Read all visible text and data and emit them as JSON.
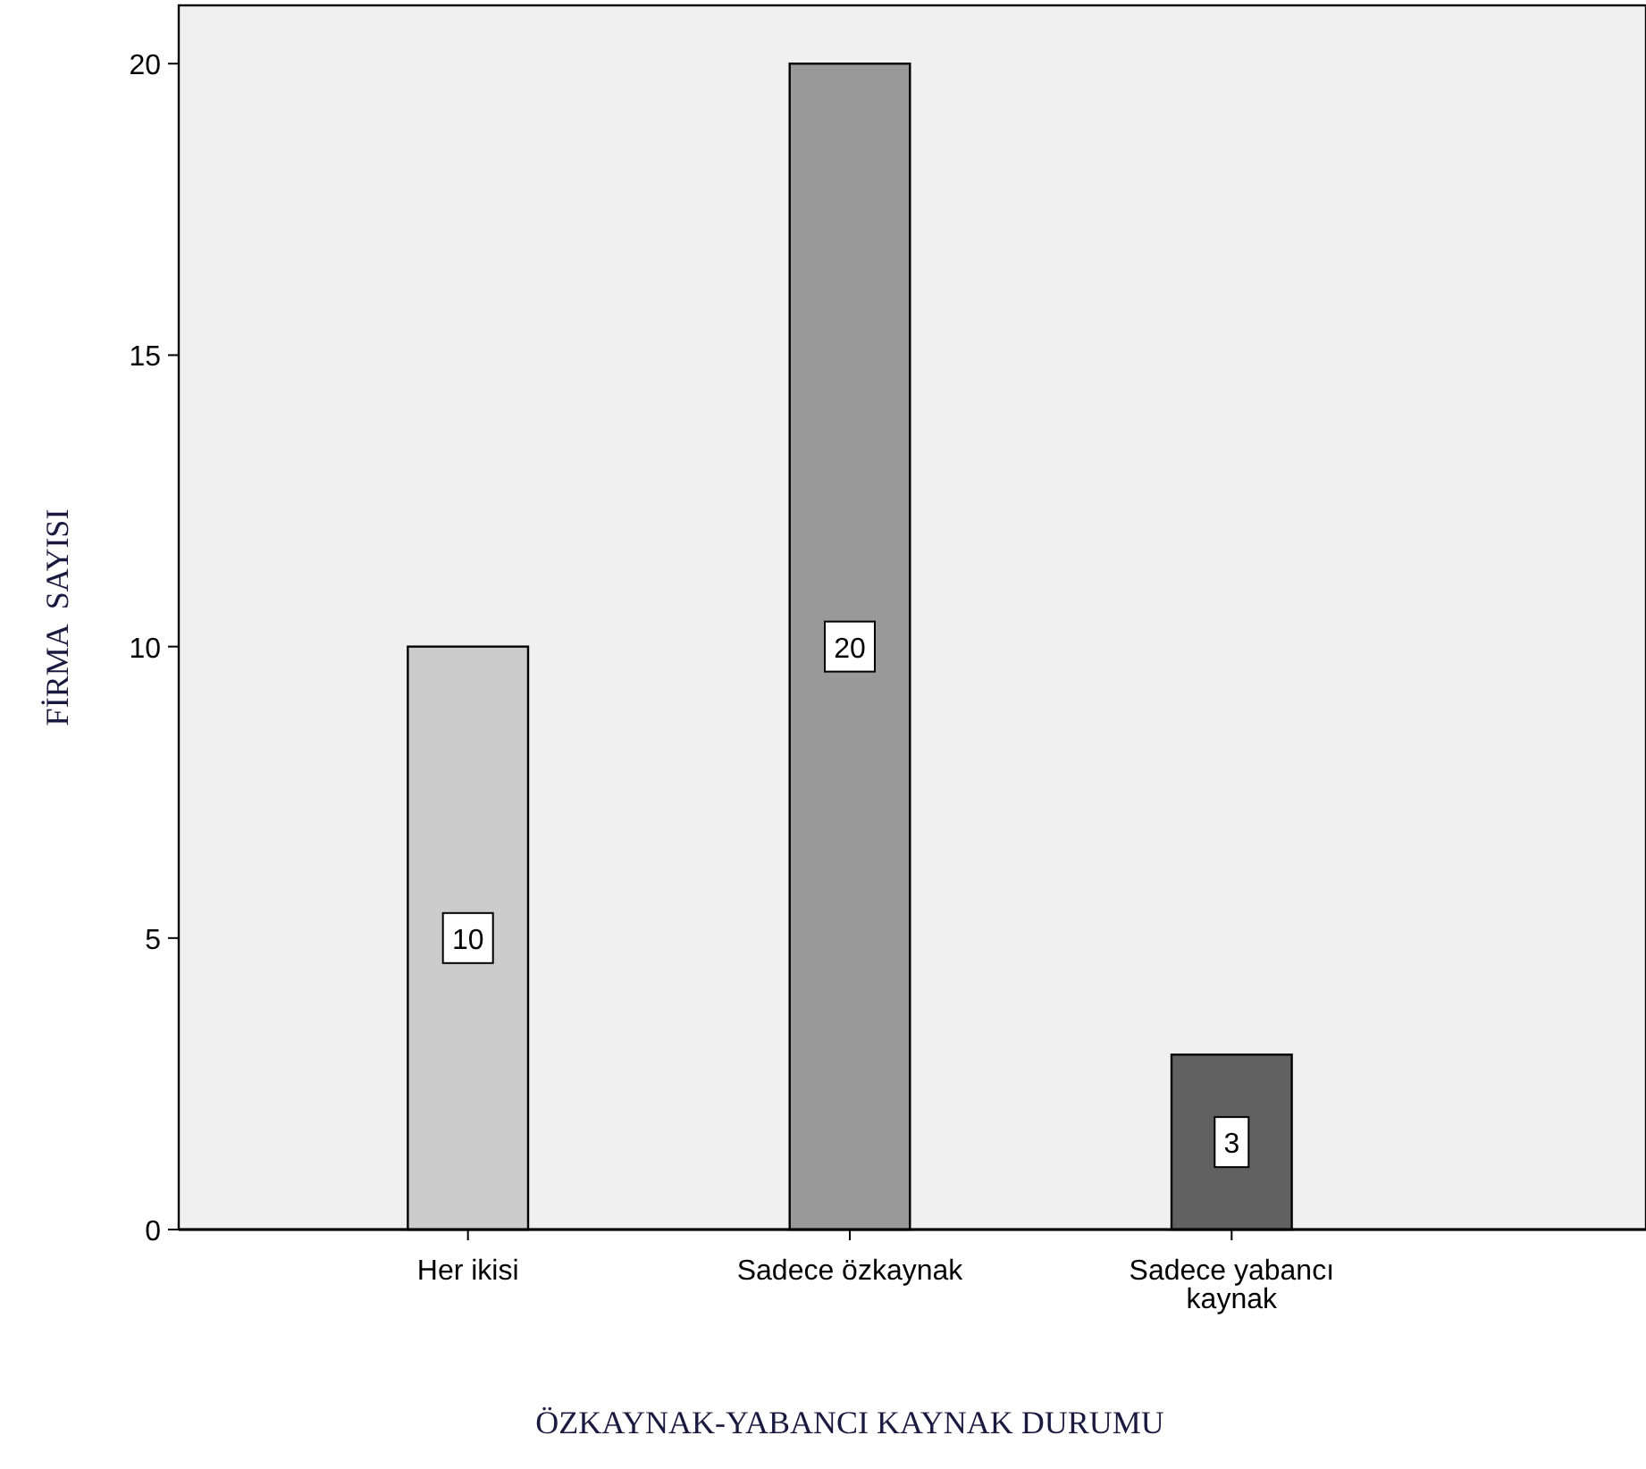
{
  "chart_data": {
    "type": "bar",
    "xlabel": "ÖZKAYNAK-YABANCI KAYNAK DURUMU",
    "ylabel": "FİRMA  SAYISI",
    "categories": [
      "Her ikisi",
      "Sadece özkaynak",
      "Sadece yabancı kaynak"
    ],
    "values": [
      10,
      20,
      3
    ],
    "colors": [
      "#cccccc",
      "#999999",
      "#616161"
    ],
    "ylim": [
      0,
      21
    ],
    "yticks": [
      0,
      5,
      10,
      15,
      20
    ],
    "data_labels": true
  }
}
